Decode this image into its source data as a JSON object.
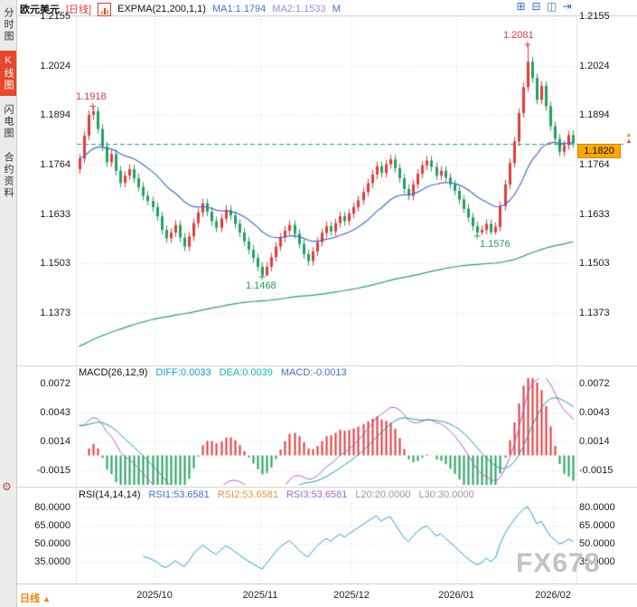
{
  "header": {
    "symbol": "欧元美元",
    "period_tag": "[日线]",
    "indicator": "EXPMA(21,200,1,1)",
    "ma1": "MA1:1.1794",
    "ma2": "MA2:1.1533",
    "extra": "M"
  },
  "window_icons": [
    {
      "name": "layout-grid-icon",
      "glyph": "⊞"
    },
    {
      "name": "layout-tile-icon",
      "glyph": "⊟"
    },
    {
      "name": "layout-split-icon",
      "glyph": "◫"
    },
    {
      "name": "layout-expand-icon",
      "glyph": "⇥"
    }
  ],
  "icons": {
    "gear": "⚙"
  },
  "sidebar": {
    "tabs": [
      {
        "label": "分时图",
        "active": false
      },
      {
        "label": "K线图",
        "active": true
      },
      {
        "label": "闪电图",
        "active": false
      },
      {
        "label": "合约资料",
        "active": false
      }
    ]
  },
  "price_axis": [
    "1.2155",
    "1.2024",
    "1.1894",
    "1.1764",
    "1.1633",
    "1.1503",
    "1.1373"
  ],
  "price_tag": "1.1820",
  "price_marker_arrows": [
    "▲",
    "▲"
  ],
  "macd": {
    "title": "MACD(26,12,9)",
    "diff_label": "DIFF:0.0033",
    "dea_label": "DEA:0.0039",
    "macd_label": "MACD:-0.0013",
    "axis": [
      "0.0072",
      "0.0043",
      "0.0014",
      "-0.0015"
    ]
  },
  "rsi": {
    "title": "RSI(14,14,14)",
    "rsi1_label": "RSI1:53.6581",
    "rsi2_label": "RSI2:53.6581",
    "rsi3_label": "RSI3:53.6581",
    "l20_label": "L20:20.0000",
    "l30_label": "L30:30.0000",
    "axis": [
      "80.0000",
      "65.0000",
      "50.0000",
      "35.0000"
    ]
  },
  "bottom": {
    "period_label": "日线",
    "period_arrow": "▲",
    "dates": [
      "2025/10",
      "2025/11",
      "2025/12",
      "2026/01",
      "2026/02"
    ]
  },
  "watermark": "FX678",
  "colors": {
    "up": "#e23b3b",
    "down": "#23a15e",
    "ma1": "#3f6fd0",
    "ma2": "#2aa05a",
    "diff_line": "#b05fc8",
    "dea_line": "#1b9e9e",
    "rsi_line": "#1e9ad6",
    "current_line": "#1a9e9e",
    "grid": "#d9d9d9",
    "tag_bg": "#ffa800",
    "active_tab": "#e8472b",
    "period_text": "#f08200"
  },
  "chart_data": {
    "type": "candlestick",
    "title": "欧元美元 日线 (EUR/USD Daily)",
    "price_gridlines": [
      1.2155,
      1.2024,
      1.1894,
      1.1764,
      1.1633,
      1.1503,
      1.1373
    ],
    "current_price": 1.182,
    "last_close": 1.182,
    "ma_displayed": {
      "ma1_expma21": 1.1794,
      "ma2_expma200": 1.1533
    },
    "macd_displayed": {
      "diff": 0.0033,
      "dea": 0.0039,
      "macd": -0.0013
    },
    "rsi_displayed": {
      "rsi1": 53.6581,
      "rsi2": 53.6581,
      "rsi3": 53.6581,
      "l20": 20.0,
      "l30": 30.0
    },
    "macd_axis_values": [
      0.0072,
      0.0043,
      0.0014,
      -0.0015
    ],
    "rsi_axis_values": [
      80,
      65,
      50,
      35
    ],
    "month_tick_indices": [
      17,
      40,
      60,
      83,
      104
    ],
    "month_tick_labels": [
      "2025/10",
      "2025/11",
      "2025/12",
      "2026/01",
      "2026/02"
    ],
    "annotations": [
      {
        "index": 3,
        "price": 1.1918,
        "text": "1.1918",
        "side": "above",
        "color": "up"
      },
      {
        "index": 98,
        "price": 1.2081,
        "text": "1.2081",
        "side": "above",
        "color": "up"
      },
      {
        "index": 40,
        "price": 1.1468,
        "text": "1.1468",
        "side": "below",
        "color": "down"
      },
      {
        "index": 87,
        "price": 1.1576,
        "text": "1.1576",
        "side": "below",
        "color": "down"
      }
    ],
    "candles": [
      [
        1.1752,
        1.1792,
        1.174,
        1.178
      ],
      [
        1.178,
        1.1852,
        1.1768,
        1.184
      ],
      [
        1.184,
        1.1907,
        1.1828,
        1.1895
      ],
      [
        1.1895,
        1.1918,
        1.1883,
        1.1905
      ],
      [
        1.1905,
        1.1917,
        1.1846,
        1.1858
      ],
      [
        1.1858,
        1.187,
        1.18,
        1.1812
      ],
      [
        1.1812,
        1.1824,
        1.1758,
        1.177
      ],
      [
        1.177,
        1.1804,
        1.1758,
        1.1792
      ],
      [
        1.1792,
        1.1804,
        1.1736,
        1.1748
      ],
      [
        1.1748,
        1.176,
        1.1704,
        1.1716
      ],
      [
        1.1716,
        1.1747,
        1.1704,
        1.1735
      ],
      [
        1.1735,
        1.1764,
        1.1723,
        1.1752
      ],
      [
        1.1752,
        1.1764,
        1.1716,
        1.1728
      ],
      [
        1.1728,
        1.174,
        1.1693,
        1.1705
      ],
      [
        1.1705,
        1.1717,
        1.167,
        1.1682
      ],
      [
        1.1682,
        1.1694,
        1.1656,
        1.1668
      ],
      [
        1.1668,
        1.168,
        1.164,
        1.1652
      ],
      [
        1.1652,
        1.1664,
        1.1616,
        1.1628
      ],
      [
        1.1628,
        1.164,
        1.158,
        1.1592
      ],
      [
        1.1592,
        1.1604,
        1.1558,
        1.157
      ],
      [
        1.157,
        1.1597,
        1.1558,
        1.1585
      ],
      [
        1.1585,
        1.1617,
        1.1573,
        1.1605
      ],
      [
        1.1605,
        1.1617,
        1.156,
        1.1572
      ],
      [
        1.1572,
        1.1584,
        1.1536,
        1.1548
      ],
      [
        1.1548,
        1.1587,
        1.1536,
        1.1575
      ],
      [
        1.1575,
        1.1622,
        1.1563,
        1.161
      ],
      [
        1.161,
        1.165,
        1.1598,
        1.1638
      ],
      [
        1.1638,
        1.1674,
        1.1626,
        1.1662
      ],
      [
        1.1662,
        1.1674,
        1.1628,
        1.164
      ],
      [
        1.164,
        1.1652,
        1.1603,
        1.1615
      ],
      [
        1.1615,
        1.1627,
        1.1586,
        1.1598
      ],
      [
        1.1598,
        1.1634,
        1.1586,
        1.1622
      ],
      [
        1.1622,
        1.1657,
        1.161,
        1.1645
      ],
      [
        1.1645,
        1.1657,
        1.1618,
        1.163
      ],
      [
        1.163,
        1.1642,
        1.1596,
        1.1608
      ],
      [
        1.1608,
        1.162,
        1.1573,
        1.1585
      ],
      [
        1.1585,
        1.1597,
        1.155,
        1.1562
      ],
      [
        1.1562,
        1.1574,
        1.1528,
        1.154
      ],
      [
        1.154,
        1.1552,
        1.1506,
        1.1518
      ],
      [
        1.1518,
        1.153,
        1.1483,
        1.1495
      ],
      [
        1.1495,
        1.1507,
        1.1468,
        1.1472
      ],
      [
        1.1472,
        1.1507,
        1.147,
        1.1495
      ],
      [
        1.1495,
        1.1532,
        1.1483,
        1.152
      ],
      [
        1.152,
        1.156,
        1.1508,
        1.1548
      ],
      [
        1.1548,
        1.1584,
        1.1536,
        1.1572
      ],
      [
        1.1572,
        1.1602,
        1.156,
        1.159
      ],
      [
        1.159,
        1.1617,
        1.1578,
        1.1605
      ],
      [
        1.1605,
        1.1617,
        1.157,
        1.1582
      ],
      [
        1.1582,
        1.1594,
        1.1543,
        1.1555
      ],
      [
        1.1555,
        1.1567,
        1.1516,
        1.1528
      ],
      [
        1.1528,
        1.154,
        1.1498,
        1.151
      ],
      [
        1.151,
        1.1547,
        1.1498,
        1.1535
      ],
      [
        1.1535,
        1.1572,
        1.1523,
        1.156
      ],
      [
        1.156,
        1.1596,
        1.1548,
        1.1584
      ],
      [
        1.1584,
        1.1614,
        1.1572,
        1.1602
      ],
      [
        1.1602,
        1.1614,
        1.1576,
        1.1588
      ],
      [
        1.1588,
        1.1622,
        1.1576,
        1.161
      ],
      [
        1.161,
        1.164,
        1.1598,
        1.1628
      ],
      [
        1.1628,
        1.164,
        1.1603,
        1.1615
      ],
      [
        1.1615,
        1.1647,
        1.1603,
        1.1635
      ],
      [
        1.1635,
        1.1664,
        1.1623,
        1.1652
      ],
      [
        1.1652,
        1.1682,
        1.164,
        1.167
      ],
      [
        1.167,
        1.1704,
        1.1658,
        1.1692
      ],
      [
        1.1692,
        1.1727,
        1.168,
        1.1715
      ],
      [
        1.1715,
        1.175,
        1.1703,
        1.1738
      ],
      [
        1.1738,
        1.1772,
        1.1726,
        1.176
      ],
      [
        1.176,
        1.1772,
        1.173,
        1.1742
      ],
      [
        1.1742,
        1.1777,
        1.173,
        1.1765
      ],
      [
        1.1765,
        1.179,
        1.1753,
        1.1778
      ],
      [
        1.1778,
        1.179,
        1.1743,
        1.1755
      ],
      [
        1.1755,
        1.1767,
        1.1716,
        1.1728
      ],
      [
        1.1728,
        1.174,
        1.1688,
        1.17
      ],
      [
        1.17,
        1.1712,
        1.167,
        1.1682
      ],
      [
        1.1682,
        1.1724,
        1.167,
        1.1712
      ],
      [
        1.1712,
        1.1752,
        1.17,
        1.174
      ],
      [
        1.174,
        1.1774,
        1.1728,
        1.1762
      ],
      [
        1.1762,
        1.1787,
        1.175,
        1.1775
      ],
      [
        1.1775,
        1.1787,
        1.1746,
        1.1758
      ],
      [
        1.1758,
        1.177,
        1.1723,
        1.1735
      ],
      [
        1.1735,
        1.176,
        1.1723,
        1.1748
      ],
      [
        1.1748,
        1.176,
        1.1718,
        1.173
      ],
      [
        1.173,
        1.1742,
        1.17,
        1.1712
      ],
      [
        1.1712,
        1.1724,
        1.1683,
        1.1695
      ],
      [
        1.1695,
        1.1707,
        1.166,
        1.1672
      ],
      [
        1.1672,
        1.1684,
        1.1636,
        1.1648
      ],
      [
        1.1648,
        1.166,
        1.1613,
        1.1625
      ],
      [
        1.1625,
        1.1637,
        1.159,
        1.1602
      ],
      [
        1.1602,
        1.1614,
        1.1576,
        1.1585
      ],
      [
        1.1585,
        1.1604,
        1.1578,
        1.1592
      ],
      [
        1.1592,
        1.162,
        1.158,
        1.1608
      ],
      [
        1.1608,
        1.162,
        1.1579,
        1.1586
      ],
      [
        1.1586,
        1.1612,
        1.158,
        1.16
      ],
      [
        1.16,
        1.1667,
        1.1588,
        1.1655
      ],
      [
        1.1655,
        1.1724,
        1.1643,
        1.1712
      ],
      [
        1.1712,
        1.178,
        1.17,
        1.1768
      ],
      [
        1.1768,
        1.1837,
        1.1756,
        1.1825
      ],
      [
        1.1825,
        1.1912,
        1.1813,
        1.19
      ],
      [
        1.19,
        1.198,
        1.1888,
        1.1968
      ],
      [
        1.1968,
        1.2081,
        1.1956,
        1.2035
      ],
      [
        1.2035,
        1.2047,
        1.198,
        1.1992
      ],
      [
        1.1992,
        1.2004,
        1.1923,
        1.1935
      ],
      [
        1.1935,
        1.1984,
        1.1923,
        1.1972
      ],
      [
        1.1972,
        1.1984,
        1.1906,
        1.1918
      ],
      [
        1.1918,
        1.193,
        1.1853,
        1.1865
      ],
      [
        1.1865,
        1.1877,
        1.182,
        1.1832
      ],
      [
        1.1832,
        1.1844,
        1.1786,
        1.1798
      ],
      [
        1.1798,
        1.1827,
        1.1786,
        1.1815
      ],
      [
        1.1815,
        1.1854,
        1.1803,
        1.1842
      ],
      [
        1.1842,
        1.1854,
        1.1808,
        1.182
      ]
    ],
    "indicators": {
      "expma_periods": [
        21,
        200
      ],
      "macd_params": [
        26,
        12,
        9
      ],
      "rsi_params": [
        14,
        14,
        14
      ]
    }
  }
}
